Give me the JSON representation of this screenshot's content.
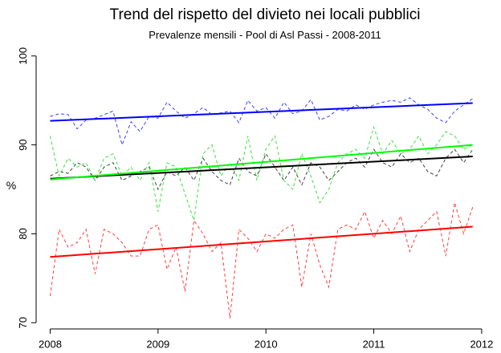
{
  "chart_data": {
    "type": "line",
    "title": "Trend del rispetto del divieto nei locali pubblici",
    "subtitle": "Prevalenze mensili - Pool di Asl Passi - 2008-2011",
    "y_label": "%",
    "xlim": [
      2007.87,
      2012.09
    ],
    "xticks": [
      2008,
      2009,
      2010,
      2011,
      2012
    ],
    "ylim": [
      69.3,
      100.7
    ],
    "yticks": [
      70,
      80,
      90,
      100
    ],
    "x": [
      2008,
      2008.083,
      2008.167,
      2008.25,
      2008.333,
      2008.417,
      2008.5,
      2008.583,
      2008.667,
      2008.75,
      2008.833,
      2008.917,
      2009,
      2009.083,
      2009.167,
      2009.25,
      2009.333,
      2009.417,
      2009.5,
      2009.583,
      2009.667,
      2009.75,
      2009.833,
      2009.917,
      2010,
      2010.083,
      2010.167,
      2010.25,
      2010.333,
      2010.417,
      2010.5,
      2010.583,
      2010.667,
      2010.75,
      2010.833,
      2010.917,
      2011,
      2011.083,
      2011.167,
      2011.25,
      2011.333,
      2011.417,
      2011.5,
      2011.583,
      2011.667,
      2011.75,
      2011.833,
      2011.917
    ],
    "series": [
      {
        "color": "#4040ff",
        "values": [
          93.2,
          93.5,
          93.4,
          91.8,
          92.8,
          93.0,
          93.4,
          93.8,
          90.0,
          92.6,
          91.5,
          93.2,
          93.0,
          94.8,
          93.8,
          93.0,
          93.5,
          94.2,
          93.4,
          93.6,
          93.8,
          92.5,
          95.0,
          93.8,
          94.2,
          93.0,
          94.8,
          93.5,
          93.8,
          95.1,
          92.8,
          93.2,
          94.0,
          93.8,
          94.5,
          94.0,
          94.5,
          94.8,
          95.0,
          94.8,
          95.3,
          94.5,
          94.0,
          93.0,
          92.5,
          93.8,
          94.5,
          95.2
        ]
      },
      {
        "color": "#404040",
        "values": [
          86.5,
          87.0,
          86.8,
          88.0,
          87.5,
          86.0,
          87.5,
          88.0,
          86.0,
          86.5,
          87.0,
          87.5,
          85.0,
          87.0,
          86.5,
          87.5,
          86.0,
          88.5,
          87.0,
          86.0,
          85.5,
          88.5,
          87.0,
          86.5,
          89.0,
          87.5,
          86.0,
          87.5,
          85.5,
          88.0,
          87.5,
          86.0,
          87.0,
          88.0,
          88.5,
          87.5,
          89.5,
          88.0,
          87.5,
          89.0,
          88.0,
          88.5,
          87.0,
          86.5,
          88.5,
          89.5,
          88.0,
          89.5
        ]
      },
      {
        "color": "#40e040",
        "values": [
          91.0,
          86.5,
          88.5,
          87.5,
          88.0,
          86.0,
          88.5,
          89.0,
          86.5,
          87.5,
          86.0,
          88.0,
          82.5,
          88.0,
          87.5,
          84.5,
          81.5,
          89.0,
          90.0,
          86.5,
          88.0,
          86.0,
          91.0,
          86.0,
          89.5,
          91.0,
          86.0,
          85.0,
          89.0,
          86.5,
          83.5,
          85.0,
          88.0,
          89.0,
          89.5,
          88.5,
          92.0,
          89.0,
          90.5,
          89.0,
          89.5,
          91.0,
          89.0,
          90.0,
          91.5,
          91.0,
          89.5,
          90.0
        ]
      },
      {
        "color": "#ff4040",
        "values": [
          73.0,
          80.5,
          78.5,
          79.0,
          80.5,
          75.5,
          80.5,
          80.0,
          79.0,
          77.5,
          77.5,
          80.5,
          81.0,
          76.0,
          78.5,
          73.5,
          81.5,
          80.0,
          78.0,
          79.0,
          70.5,
          80.5,
          79.5,
          78.0,
          80.0,
          79.5,
          80.5,
          81.0,
          74.0,
          80.0,
          76.5,
          74.0,
          80.5,
          81.0,
          80.5,
          82.5,
          79.5,
          81.5,
          80.0,
          82.0,
          78.0,
          80.5,
          81.5,
          82.5,
          77.5,
          83.5,
          80.0,
          83.0
        ]
      }
    ],
    "trend_lines": [
      {
        "color": "#0000ff",
        "x": [
          2008,
          2011.917
        ],
        "values": [
          92.7,
          94.7
        ]
      },
      {
        "color": "#000000",
        "x": [
          2008,
          2011.917
        ],
        "values": [
          86.2,
          88.7
        ]
      },
      {
        "color": "#00ff00",
        "x": [
          2008,
          2011.917
        ],
        "values": [
          86.1,
          90.0
        ]
      },
      {
        "color": "#ff0000",
        "x": [
          2008,
          2011.917
        ],
        "values": [
          77.4,
          80.8
        ]
      }
    ]
  }
}
